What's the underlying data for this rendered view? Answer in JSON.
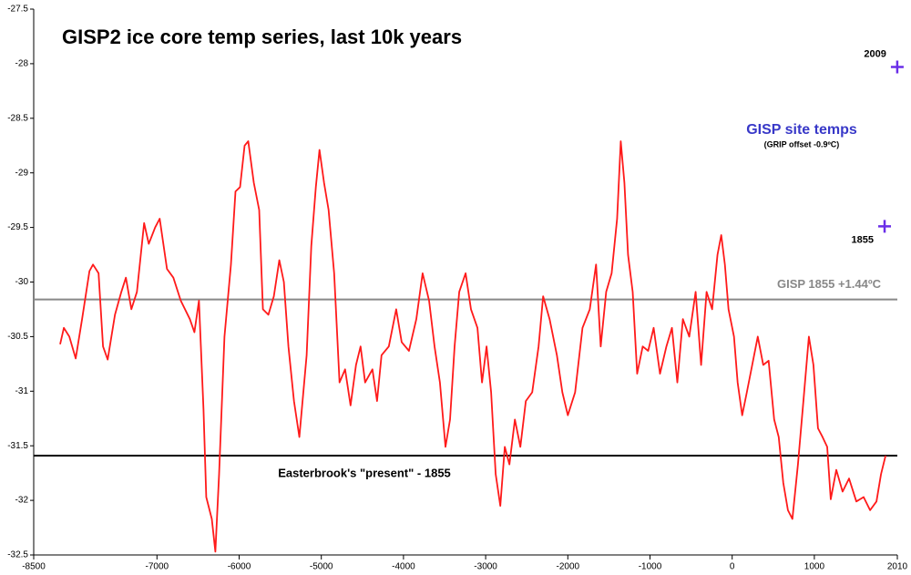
{
  "chart_data": {
    "type": "line",
    "title": "GISP2 ice core temp series, last 10k years",
    "x": [
      -8178,
      -8133,
      -8067,
      -7989,
      -7911,
      -7822,
      -7778,
      -7711,
      -7656,
      -7600,
      -7511,
      -7433,
      -7378,
      -7311,
      -7244,
      -7156,
      -7100,
      -7022,
      -6967,
      -6878,
      -6800,
      -6711,
      -6600,
      -6544,
      -6489,
      -6433,
      -6400,
      -6333,
      -6289,
      -6244,
      -6178,
      -6100,
      -6044,
      -5989,
      -5933,
      -5889,
      -5822,
      -5756,
      -5711,
      -5644,
      -5578,
      -5511,
      -5456,
      -5400,
      -5333,
      -5267,
      -5178,
      -5122,
      -5067,
      -5022,
      -4967,
      -4911,
      -4844,
      -4778,
      -4711,
      -4644,
      -4578,
      -4522,
      -4467,
      -4378,
      -4322,
      -4267,
      -4178,
      -4089,
      -4022,
      -3933,
      -3844,
      -3767,
      -3689,
      -3622,
      -3556,
      -3489,
      -3433,
      -3378,
      -3322,
      -3244,
      -3178,
      -3100,
      -3044,
      -2989,
      -2933,
      -2878,
      -2822,
      -2767,
      -2711,
      -2644,
      -2578,
      -2511,
      -2433,
      -2356,
      -2300,
      -2222,
      -2133,
      -2067,
      -2000,
      -1911,
      -1822,
      -1733,
      -1656,
      -1600,
      -1533,
      -1467,
      -1400,
      -1356,
      -1311,
      -1267,
      -1211,
      -1156,
      -1089,
      -1022,
      -956,
      -878,
      -800,
      -733,
      -667,
      -600,
      -522,
      -444,
      -378,
      -311,
      -244,
      -178,
      -133,
      -89,
      -44,
      22,
      67,
      122,
      178,
      244,
      311,
      378,
      444,
      511,
      567,
      622,
      678,
      733,
      800,
      867,
      933,
      989,
      1044,
      1100,
      1156,
      1200,
      1267,
      1344,
      1422,
      1511,
      1600,
      1678,
      1756,
      1811,
      1867
    ],
    "series": [
      {
        "color": "#ff1a1a",
        "values": [
          -30.57,
          -30.42,
          -30.5,
          -30.7,
          -30.34,
          -29.9,
          -29.84,
          -29.92,
          -30.59,
          -30.71,
          -30.3,
          -30.09,
          -29.96,
          -30.25,
          -30.09,
          -29.46,
          -29.65,
          -29.5,
          -29.42,
          -29.88,
          -29.96,
          -30.17,
          -30.34,
          -30.46,
          -30.17,
          -31.17,
          -31.97,
          -32.17,
          -32.47,
          -31.76,
          -30.5,
          -29.84,
          -29.17,
          -29.13,
          -28.75,
          -28.71,
          -29.09,
          -29.34,
          -30.25,
          -30.3,
          -30.13,
          -29.8,
          -30.0,
          -30.59,
          -31.09,
          -31.42,
          -30.67,
          -29.67,
          -29.13,
          -28.79,
          -29.09,
          -29.34,
          -29.92,
          -30.92,
          -30.8,
          -31.13,
          -30.76,
          -30.59,
          -30.92,
          -30.8,
          -31.09,
          -30.67,
          -30.59,
          -30.25,
          -30.55,
          -30.63,
          -30.34,
          -29.92,
          -30.17,
          -30.59,
          -30.92,
          -31.51,
          -31.26,
          -30.59,
          -30.09,
          -29.92,
          -30.25,
          -30.42,
          -30.92,
          -30.59,
          -31.01,
          -31.76,
          -32.05,
          -31.51,
          -31.67,
          -31.26,
          -31.51,
          -31.09,
          -31.01,
          -30.59,
          -30.13,
          -30.34,
          -30.67,
          -31.01,
          -31.22,
          -31.01,
          -30.42,
          -30.25,
          -29.84,
          -30.59,
          -30.09,
          -29.92,
          -29.42,
          -28.71,
          -29.09,
          -29.75,
          -30.09,
          -30.84,
          -30.59,
          -30.63,
          -30.42,
          -30.84,
          -30.59,
          -30.42,
          -30.92,
          -30.34,
          -30.5,
          -30.09,
          -30.76,
          -30.09,
          -30.25,
          -29.75,
          -29.57,
          -29.84,
          -30.25,
          -30.5,
          -30.92,
          -31.22,
          -31.01,
          -30.76,
          -30.5,
          -30.76,
          -30.72,
          -31.26,
          -31.42,
          -31.84,
          -32.09,
          -32.17,
          -31.67,
          -31.09,
          -30.5,
          -30.76,
          -31.34,
          -31.42,
          -31.51,
          -31.99,
          -31.72,
          -31.92,
          -31.8,
          -32.01,
          -31.97,
          -32.09,
          -32.01,
          -31.76,
          -31.59
        ]
      }
    ],
    "reference_lines": [
      {
        "label": "GISP 1855 +1.44ºC",
        "value": -30.16,
        "color": "#888888"
      },
      {
        "label": "Easterbrook's \"present\" - 1855",
        "value": -31.59,
        "color": "#000000"
      }
    ],
    "points": [
      {
        "label": "2009",
        "x": 2009,
        "y": -28.03,
        "color": "#6a2ee8"
      },
      {
        "label": "1855",
        "x": 1855,
        "y": -29.49,
        "color": "#6a2ee8"
      }
    ],
    "annotations": [
      "GISP site temps",
      "(GRIP offset -0.9ºC)"
    ],
    "xlim": [
      -8500,
      2010
    ],
    "ylim": [
      -32.5,
      -27.5
    ],
    "xticks": [
      -8500,
      -7000,
      -6000,
      -5000,
      -4000,
      -3000,
      -2000,
      -1000,
      0,
      1000,
      2010
    ],
    "yticks": [
      -27.5,
      -28,
      -28.5,
      -29,
      -29.5,
      -30,
      -30.5,
      -31,
      -31.5,
      -32,
      -32.5
    ],
    "grid": false
  }
}
